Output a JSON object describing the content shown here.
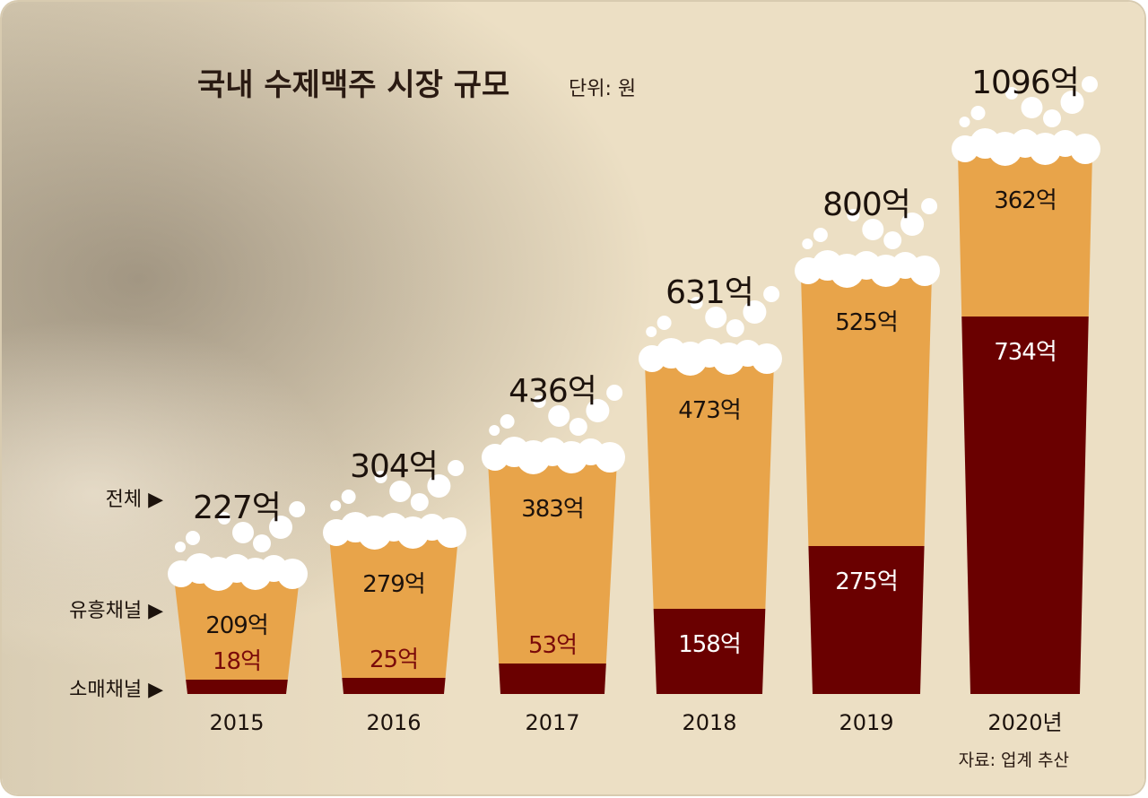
{
  "chart_data": {
    "type": "bar",
    "title": "국내 수제맥주 시장 규모",
    "unit_label": "단위: 원",
    "source": "자료: 업계 추산",
    "categories": [
      "2015",
      "2016",
      "2017",
      "2018",
      "2019",
      "2020년"
    ],
    "series": [
      {
        "name": "소매채널",
        "values": [
          18,
          25,
          53,
          158,
          275,
          734
        ],
        "labels": [
          "18억",
          "25억",
          "53억",
          "158억",
          "275억",
          "734억"
        ],
        "color": "#6a0000"
      },
      {
        "name": "유흥채널",
        "values": [
          209,
          279,
          383,
          473,
          525,
          362
        ],
        "labels": [
          "209억",
          "279억",
          "383억",
          "473억",
          "525억",
          "362억"
        ],
        "color": "#e8a44a"
      }
    ],
    "totals": {
      "name": "전체",
      "values": [
        227,
        304,
        436,
        631,
        800,
        1096
      ],
      "labels": [
        "227억",
        "304억",
        "436억",
        "631억",
        "800억",
        "1096억"
      ]
    },
    "legend": [
      "전체",
      "유흥채널",
      "소매채널"
    ],
    "legend_marker": "▶",
    "stacked": true,
    "grid": false
  }
}
